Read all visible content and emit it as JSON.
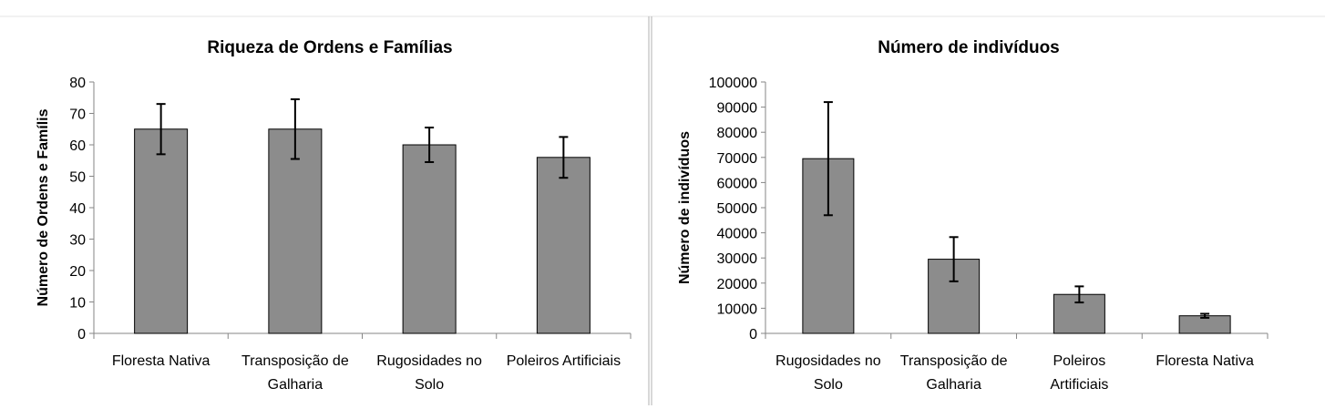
{
  "chart_data": [
    {
      "type": "bar",
      "title": "Riqueza de Ordens e Famílias",
      "xlabel": "",
      "ylabel": "Número de Ordens e Famílis",
      "categories": [
        [
          "Floresta Nativa"
        ],
        [
          "Transposição de",
          "Galharia"
        ],
        [
          "Rugosidades no",
          "Solo"
        ],
        [
          "Poleiros Artificiais"
        ]
      ],
      "values": [
        65,
        65,
        60,
        56
      ],
      "errors": [
        8,
        9.5,
        5.5,
        6.5
      ],
      "ylim": [
        0,
        80
      ],
      "yticks": [
        0,
        10,
        20,
        30,
        40,
        50,
        60,
        70,
        80
      ],
      "grid": false,
      "bar_color": "#8c8c8c"
    },
    {
      "type": "bar",
      "title": "Número de indivíduos",
      "xlabel": "",
      "ylabel": "Número de indivíduos",
      "categories": [
        [
          "Rugosidades no",
          "Solo"
        ],
        [
          "Transposição de",
          "Galharia"
        ],
        [
          "Poleiros",
          "Artificiais"
        ],
        [
          "Floresta Nativa"
        ]
      ],
      "values": [
        69500,
        29500,
        15500,
        7000
      ],
      "errors": [
        22500,
        8800,
        3200,
        800
      ],
      "ylim": [
        0,
        100000
      ],
      "yticks": [
        0,
        10000,
        20000,
        30000,
        40000,
        50000,
        60000,
        70000,
        80000,
        90000,
        100000
      ],
      "grid": false,
      "bar_color": "#8c8c8c"
    }
  ]
}
